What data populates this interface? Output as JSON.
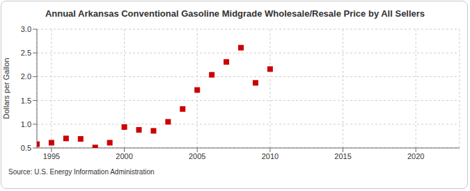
{
  "chart_data": {
    "type": "scatter",
    "title": "Annual Arkansas Conventional Gasoline Midgrade Wholesale/Resale Price by All Sellers",
    "y_label": "Dollars per Gallon",
    "source": "Source: U.S. Energy Information Administration",
    "x": [
      1994,
      1995,
      1996,
      1997,
      1998,
      1999,
      2000,
      2001,
      2002,
      2003,
      2004,
      2005,
      2006,
      2007,
      2008,
      2009,
      2010
    ],
    "values": [
      0.58,
      0.61,
      0.7,
      0.69,
      0.51,
      0.61,
      0.94,
      0.88,
      0.86,
      1.05,
      1.32,
      1.72,
      2.04,
      2.31,
      2.61,
      1.87,
      2.16
    ],
    "color": "#cc0000",
    "marker": "square",
    "xlim": [
      1994,
      2023
    ],
    "xticks": [
      1995,
      2000,
      2005,
      2010,
      2015,
      2020
    ],
    "ylim": [
      0.5,
      3.0
    ],
    "yticks": [
      {
        "value": 0.5,
        "label": "0.5"
      },
      {
        "value": 1.0,
        "label": "1.0"
      },
      {
        "value": 1.5,
        "label": "1.5"
      },
      {
        "value": 2.0,
        "label": "2.0"
      },
      {
        "value": 2.5,
        "label": "2.5"
      },
      {
        "value": 3.0,
        "label": "3.0"
      }
    ],
    "grid": true
  }
}
